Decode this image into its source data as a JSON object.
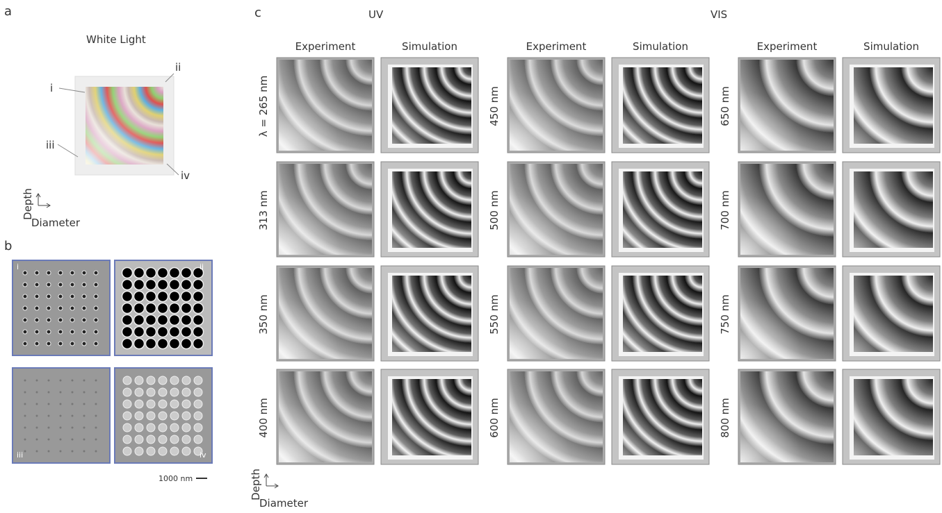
{
  "panel_a": {
    "label": "a",
    "title": "White Light",
    "markers": [
      "i",
      "ii",
      "iii",
      "iv"
    ],
    "y_axis": "Depth",
    "x_axis": "Diameter"
  },
  "panel_b": {
    "label": "b",
    "tiles": [
      "i",
      "ii",
      "iii",
      "iv"
    ],
    "scale_bar": "1000 nm"
  },
  "panel_c": {
    "label": "c",
    "groups": [
      "UV",
      "VIS"
    ],
    "blocks": [
      {
        "headers": [
          "Experiment",
          "Simulation"
        ],
        "rows": [
          "λ = 265 nm",
          "313 nm",
          "350 nm",
          "400 nm"
        ]
      },
      {
        "headers": [
          "Experiment",
          "Simulation"
        ],
        "rows": [
          "450 nm",
          "500 nm",
          "550 nm",
          "600 nm"
        ]
      },
      {
        "headers": [
          "Experiment",
          "Simulation"
        ],
        "rows": [
          "650 nm",
          "700 nm",
          "750 nm",
          "800 nm"
        ]
      }
    ],
    "y_axis": "Depth",
    "x_axis": "Diameter"
  }
}
